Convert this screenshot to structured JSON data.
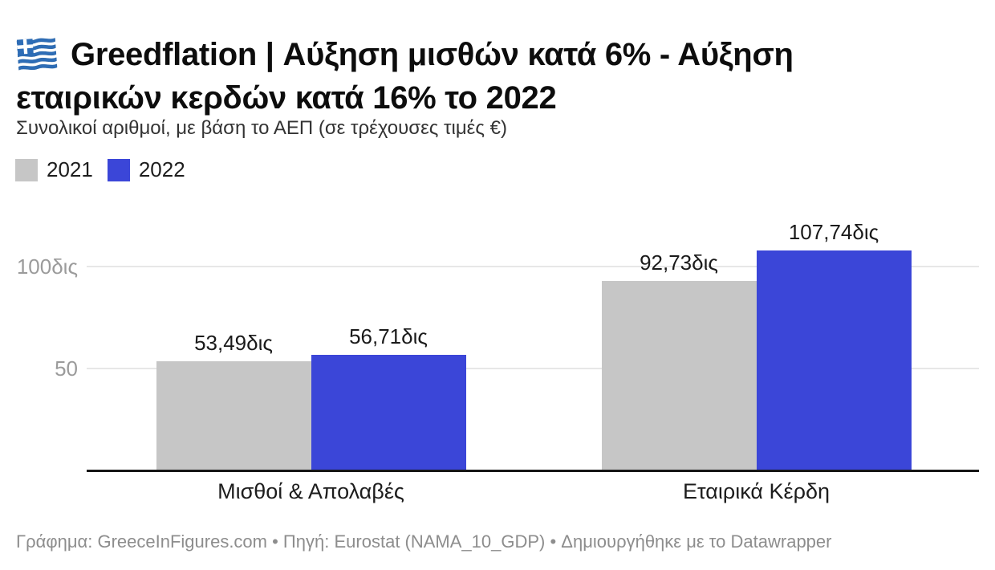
{
  "header": {
    "flag_icon": "greek-flag",
    "title_line1": "Greedflation | Αύξηση μισθών κατά 6% - Αύξηση",
    "title_line2": "εταιρικών κερδών κατά 16% το 2022",
    "subtitle": "Συνολικοί αριθμοί, με βάση το ΑΕΠ (σε τρέχουσες τιμές €)"
  },
  "legend": {
    "items": [
      {
        "label": "2021",
        "color": "#c6c6c6"
      },
      {
        "label": "2022",
        "color": "#3b46d8"
      }
    ]
  },
  "chart_data": {
    "type": "bar",
    "title": "Greedflation | Αύξηση μισθών κατά 6% - Αύξηση εταιρικών κερδών κατά 16% το 2022",
    "subtitle": "Συνολικοί αριθμοί, με βάση το ΑΕΠ (σε τρέχουσες τιμές €)",
    "categories": [
      "Μισθοί & Απολαβές",
      "Εταιρικά Κέρδη"
    ],
    "series": [
      {
        "name": "2021",
        "color": "#c6c6c6",
        "values": [
          53.49,
          92.73
        ],
        "value_labels": [
          "53,49δις",
          "92,73δις"
        ]
      },
      {
        "name": "2022",
        "color": "#3b46d8",
        "values": [
          56.71,
          107.74
        ],
        "value_labels": [
          "56,71δις",
          "107,74δις"
        ]
      }
    ],
    "value_suffix": "δις",
    "yticks": [
      {
        "value": 50,
        "label": "50"
      },
      {
        "value": 100,
        "label": "100δις"
      }
    ],
    "ylim": [
      0,
      125
    ],
    "grid": true,
    "legend_position": "top-left"
  },
  "footer": {
    "text": "Γράφημα: GreeceInFigures.com • Πηγή: Eurostat (NAMA_10_GDP) • Δημιουργήθηκε με το Datawrapper"
  }
}
